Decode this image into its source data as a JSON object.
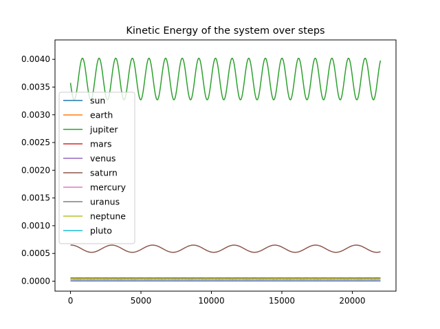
{
  "chart_data": {
    "type": "line",
    "title": "Kinetic Energy of the system over steps",
    "xlabel": "",
    "ylabel": "",
    "xlim": [
      -1100,
      23100
    ],
    "ylim": [
      -0.00018,
      0.00435
    ],
    "x_ticks": [
      0,
      5000,
      10000,
      15000,
      20000
    ],
    "x_tick_labels": [
      "0",
      "5000",
      "10000",
      "15000",
      "20000"
    ],
    "y_ticks": [
      0.0,
      0.0005,
      0.001,
      0.0015,
      0.002,
      0.0025,
      0.003,
      0.0035,
      0.004
    ],
    "y_tick_labels": [
      "0.0000",
      "0.0005",
      "0.0010",
      "0.0015",
      "0.0020",
      "0.0025",
      "0.0030",
      "0.0035",
      "0.0040"
    ],
    "grid": false,
    "legend_position": "center-left",
    "x_range": [
      0,
      22000
    ],
    "series": [
      {
        "name": "sun",
        "color": "#1f77b4",
        "mean": 3e-06,
        "amplitude": 5e-07,
        "period": 2900,
        "peak_step": 0
      },
      {
        "name": "earth",
        "color": "#ff7f0e",
        "mean": 3.5e-05,
        "amplitude": 1e-06,
        "period": 1000,
        "peak_step": 0
      },
      {
        "name": "jupiter",
        "color": "#2ca02c",
        "mean": 0.003645,
        "amplitude": 0.000375,
        "period": 1180,
        "peak_step": 850
      },
      {
        "name": "mars",
        "color": "#d62728",
        "mean": 8e-06,
        "amplitude": 5e-07,
        "period": 1900,
        "peak_step": 0
      },
      {
        "name": "venus",
        "color": "#9467bd",
        "mean": 6e-05,
        "amplitude": 1e-06,
        "period": 620,
        "peak_step": 0
      },
      {
        "name": "saturn",
        "color": "#8c564b",
        "mean": 0.000585,
        "amplitude": 6.5e-05,
        "period": 2890,
        "peak_step": 2940
      },
      {
        "name": "mercury",
        "color": "#e377c2",
        "mean": 1.2e-05,
        "amplitude": 2e-06,
        "period": 240,
        "peak_step": 0
      },
      {
        "name": "uranus",
        "color": "#7f7f7f",
        "mean": 5.2e-05,
        "amplitude": 2e-06,
        "period": 8400,
        "peak_step": 0
      },
      {
        "name": "neptune",
        "color": "#bcbd22",
        "mean": 4.2e-05,
        "amplitude": 1e-06,
        "period": 16500,
        "peak_step": 0
      },
      {
        "name": "pluto",
        "color": "#17becf",
        "mean": 1e-06,
        "amplitude": 2e-07,
        "period": 24800,
        "peak_step": 0
      }
    ]
  }
}
